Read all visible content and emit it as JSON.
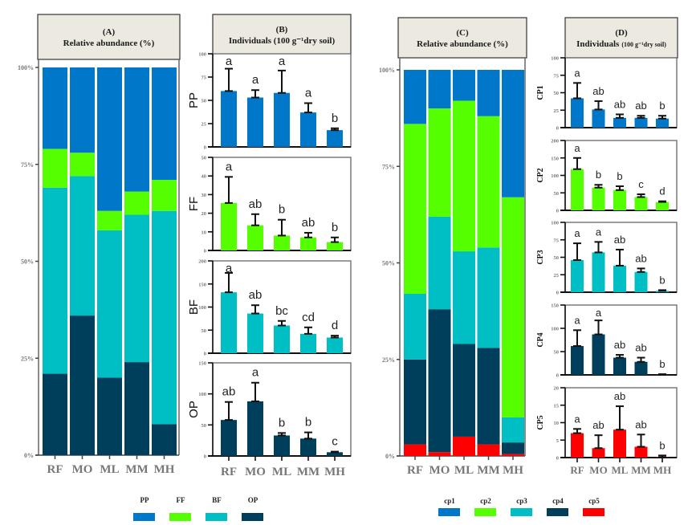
{
  "colors": {
    "PP": "#0077C8",
    "FF": "#55FF00",
    "BF": "#00BFC4",
    "OP": "#003F5C",
    "cp1": "#0077C8",
    "cp2": "#55FF00",
    "cp3": "#00BFC4",
    "cp4": "#003F5C",
    "cp5": "#FF0000",
    "header_bg": "#ECE9E1"
  },
  "legends": {
    "trophic": {
      "items": [
        {
          "key": "PP",
          "label": "PP"
        },
        {
          "key": "FF",
          "label": "FF"
        },
        {
          "key": "BF",
          "label": "BF"
        },
        {
          "key": "OP",
          "label": "OP"
        }
      ]
    },
    "cp": {
      "items": [
        {
          "key": "cp1",
          "label": "cp1"
        },
        {
          "key": "cp2",
          "label": "cp2"
        },
        {
          "key": "cp3",
          "label": "cp3"
        },
        {
          "key": "cp4",
          "label": "cp4"
        },
        {
          "key": "cp5",
          "label": "cp5"
        }
      ]
    }
  },
  "chart_data": [
    {
      "id": "A",
      "type": "bar",
      "stacked": true,
      "panel_label": "(A)",
      "title": "Relative abundance (%)",
      "categories": [
        "RF",
        "MO",
        "ML",
        "MM",
        "MH"
      ],
      "yticks": [
        "0%",
        "25%",
        "50%",
        "75%",
        "100%"
      ],
      "ylim": [
        0,
        100
      ],
      "series": [
        {
          "name": "OP",
          "values": [
            21,
            36,
            20,
            24,
            8
          ]
        },
        {
          "name": "BF",
          "values": [
            48,
            36,
            38,
            38,
            55
          ]
        },
        {
          "name": "FF",
          "values": [
            10,
            6,
            5,
            6,
            8
          ]
        },
        {
          "name": "PP",
          "values": [
            21,
            22,
            37,
            32,
            29
          ]
        }
      ]
    },
    {
      "id": "B",
      "type": "bar",
      "panel_label": "(B)",
      "title": "Individuals (100 g⁻¹dry soil)",
      "categories": [
        "RF",
        "MO",
        "ML",
        "MM",
        "MH"
      ],
      "subplots": [
        {
          "name": "PP",
          "ylabel": "PP",
          "ylim": [
            0,
            100
          ],
          "yticks": [
            0,
            25,
            50,
            75,
            100
          ],
          "values": [
            60,
            53,
            58,
            37,
            18
          ],
          "errors": [
            24,
            8,
            24,
            10,
            2
          ],
          "letters": [
            "a",
            "a",
            "a",
            "a",
            "b"
          ]
        },
        {
          "name": "FF",
          "ylabel": "FF",
          "ylim": [
            0,
            50
          ],
          "yticks": [
            0,
            10,
            20,
            30,
            40,
            50
          ],
          "values": [
            25.5,
            13.5,
            8,
            7,
            4.5
          ],
          "errors": [
            14,
            6,
            8.5,
            2.5,
            2.5
          ],
          "letters": [
            "a",
            "ab",
            "b",
            "ab",
            "b"
          ]
        },
        {
          "name": "BF",
          "ylabel": "BF",
          "ylim": [
            0,
            200
          ],
          "yticks": [
            0,
            50,
            100,
            150,
            200
          ],
          "values": [
            132,
            86,
            60,
            42,
            34
          ],
          "errors": [
            42,
            18,
            10,
            14,
            4
          ],
          "letters": [
            "a",
            "ab",
            "bc",
            "cd",
            "d"
          ]
        },
        {
          "name": "OP",
          "ylabel": "OP",
          "ylim": [
            0,
            150
          ],
          "yticks": [
            0,
            50,
            100,
            150
          ],
          "values": [
            58,
            88,
            33,
            28,
            6
          ],
          "errors": [
            29,
            30,
            4,
            10,
            1
          ],
          "letters": [
            "ab",
            "a",
            "b",
            "b",
            "c"
          ]
        }
      ]
    },
    {
      "id": "C",
      "type": "bar",
      "stacked": true,
      "panel_label": "(C)",
      "title": "Relative abundance (%)",
      "categories": [
        "RF",
        "MO",
        "ML",
        "MM",
        "MH"
      ],
      "yticks": [
        "0%",
        "25%",
        "50%",
        "75%",
        "100%"
      ],
      "ylim": [
        0,
        100
      ],
      "series": [
        {
          "name": "cp5",
          "values": [
            3,
            1,
            5,
            3,
            0.5
          ]
        },
        {
          "name": "cp4",
          "values": [
            22,
            37,
            24,
            25,
            3
          ]
        },
        {
          "name": "cp3",
          "values": [
            17,
            24,
            24,
            26,
            6.5
          ]
        },
        {
          "name": "cp2",
          "values": [
            44,
            28,
            39,
            34,
            57
          ]
        },
        {
          "name": "cp1",
          "values": [
            14,
            10,
            8,
            12,
            33
          ]
        }
      ]
    },
    {
      "id": "D",
      "type": "bar",
      "panel_label": "(D)",
      "title": "Individuals",
      "title_suffix": "(100 g⁻¹dry soil)",
      "categories": [
        "RF",
        "MO",
        "ML",
        "MM",
        "MH"
      ],
      "subplots": [
        {
          "name": "cp1",
          "ylabel": "CP1",
          "ylim": [
            0,
            100
          ],
          "yticks": [
            0,
            25,
            50,
            75,
            100
          ],
          "values": [
            42,
            26,
            14,
            14,
            13
          ],
          "errors": [
            22,
            12,
            5,
            3,
            4
          ],
          "letters": [
            "a",
            "ab",
            "ab",
            "ab",
            "b"
          ]
        },
        {
          "name": "cp2",
          "ylabel": "CP2",
          "ylim": [
            0,
            200
          ],
          "yticks": [
            0,
            50,
            100,
            150,
            200
          ],
          "values": [
            118,
            65,
            58,
            38,
            24
          ],
          "errors": [
            32,
            8,
            11,
            8,
            2
          ],
          "letters": [
            "a",
            "b",
            "b",
            "c",
            "d"
          ]
        },
        {
          "name": "cp3",
          "ylabel": "CP3",
          "ylim": [
            0,
            100
          ],
          "yticks": [
            0,
            25,
            50,
            75,
            100
          ],
          "values": [
            46,
            57,
            38,
            29,
            2
          ],
          "errors": [
            24,
            15,
            23,
            5,
            1
          ],
          "letters": [
            "a",
            "a",
            "ab",
            "ab",
            "b"
          ]
        },
        {
          "name": "cp4",
          "ylabel": "CP4",
          "ylim": [
            0,
            150
          ],
          "yticks": [
            0,
            50,
            100,
            150
          ],
          "values": [
            62,
            87,
            37,
            28,
            1
          ],
          "errors": [
            34,
            30,
            6,
            9,
            0.5
          ],
          "letters": [
            "a",
            "a",
            "ab",
            "ab",
            "b"
          ]
        },
        {
          "name": "cp5",
          "ylabel": "CP5",
          "ylim": [
            0,
            20
          ],
          "yticks": [
            0,
            5,
            10,
            15,
            20
          ],
          "values": [
            7,
            2.7,
            8,
            3.1,
            0.1
          ],
          "errors": [
            1.2,
            3.7,
            6.7,
            3.5,
            0.5
          ],
          "letters": [
            "a",
            "ab",
            "ab",
            "ab",
            "b"
          ]
        }
      ]
    }
  ]
}
